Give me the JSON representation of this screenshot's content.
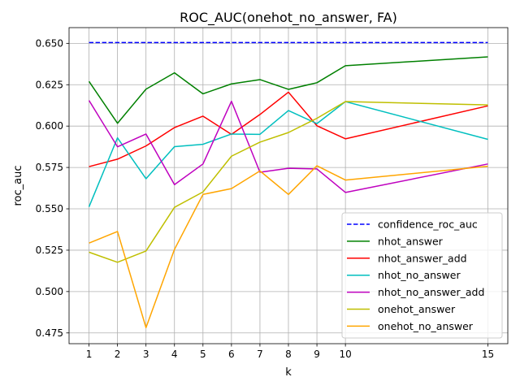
{
  "chart_data": {
    "type": "line",
    "title": "ROC_AUC(onehot_no_answer, FA)",
    "xlabel": "k",
    "ylabel": "roc_auc",
    "x": [
      1,
      2,
      3,
      4,
      5,
      6,
      7,
      8,
      9,
      10,
      15
    ],
    "x_ticks": [
      "1",
      "2",
      "3",
      "4",
      "5",
      "6",
      "7",
      "8",
      "9",
      "10",
      "15"
    ],
    "y_ticks": [
      "0.475",
      "0.500",
      "0.525",
      "0.550",
      "0.575",
      "0.600",
      "0.625",
      "0.650"
    ],
    "xlim": [
      0.3,
      15.7
    ],
    "ylim": [
      0.4685,
      0.6595
    ],
    "grid": true,
    "legend_position": "lower-right",
    "series": [
      {
        "name": "confidence_roc_auc",
        "color": "#0000ff",
        "dashed": true,
        "values": [
          0.6505,
          0.6505,
          0.6505,
          0.6505,
          0.6505,
          0.6505,
          0.6505,
          0.6505,
          0.6505,
          0.6505,
          0.6505
        ]
      },
      {
        "name": "nhot_answer",
        "color": "#008000",
        "dashed": false,
        "values": [
          0.627,
          0.6017,
          0.6223,
          0.6322,
          0.6195,
          0.6255,
          0.6281,
          0.6222,
          0.6262,
          0.6365,
          0.6418
        ]
      },
      {
        "name": "nhot_answer_add",
        "color": "#ff0000",
        "dashed": false,
        "values": [
          0.5755,
          0.58,
          0.588,
          0.5991,
          0.606,
          0.595,
          0.607,
          0.6205,
          0.6002,
          0.5923,
          0.6122
        ]
      },
      {
        "name": "nhot_no_answer",
        "color": "#00bfbf",
        "dashed": false,
        "values": [
          0.5512,
          0.5929,
          0.5682,
          0.5876,
          0.589,
          0.5952,
          0.595,
          0.6094,
          0.6015,
          0.6148,
          0.592
        ]
      },
      {
        "name": "nhot_no_answer_add",
        "color": "#bf00bf",
        "dashed": false,
        "values": [
          0.6155,
          0.5875,
          0.5952,
          0.5646,
          0.5771,
          0.615,
          0.5721,
          0.5745,
          0.5741,
          0.5599,
          0.5771
        ]
      },
      {
        "name": "onehot_answer",
        "color": "#bfbf00",
        "dashed": false,
        "values": [
          0.5238,
          0.5177,
          0.5245,
          0.5509,
          0.5602,
          0.5818,
          0.5903,
          0.5961,
          0.6047,
          0.6148,
          0.6128
        ]
      },
      {
        "name": "onehot_no_answer",
        "color": "#ffa500",
        "dashed": false,
        "values": [
          0.5293,
          0.5363,
          0.4782,
          0.5255,
          0.5587,
          0.5622,
          0.5729,
          0.5587,
          0.576,
          0.5674,
          0.5757
        ]
      }
    ]
  }
}
